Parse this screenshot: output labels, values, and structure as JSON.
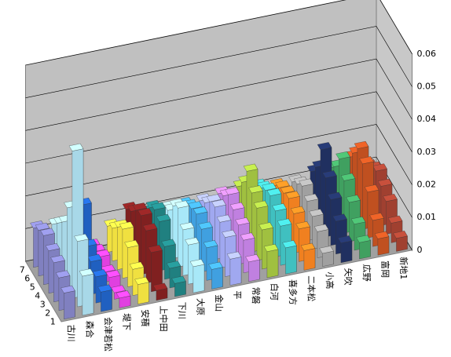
{
  "chart_data": {
    "type": "bar3d",
    "categories": [
      "古川",
      "森合",
      "会津若松",
      "堤下",
      "安積",
      "上中田",
      "下川",
      "大原",
      "金山",
      "平",
      "常磐",
      "白河",
      "喜多方",
      "二本松",
      "小高",
      "矢吹",
      "広野",
      "富岡",
      "新地1"
    ],
    "category_colors": [
      "#8080c0",
      "#a8d8e8",
      "#2060c0",
      "#e040e0",
      "#f0e040",
      "#802020",
      "#208080",
      "#a8e8f8",
      "#40a0e0",
      "#a0a8f0",
      "#c080e0",
      "#a0c040",
      "#40c0c0",
      "#f08020",
      "#a0a0a0",
      "#203060",
      "#40a060",
      "#c05020",
      "#a04030"
    ],
    "series": [
      {
        "name": "1",
        "values": [
          0.008,
          0.012,
          0.006,
          0.003,
          0.006,
          0.003,
          0.004,
          0.008,
          0.006,
          0.008,
          0.006,
          0.008,
          0.008,
          0.006,
          0.004,
          0.006,
          0.005,
          0.005,
          0.004
        ]
      },
      {
        "name": "2",
        "values": [
          0.01,
          0.02,
          0.008,
          0.002,
          0.008,
          0.012,
          0.006,
          0.012,
          0.01,
          0.012,
          0.01,
          0.012,
          0.012,
          0.01,
          0.008,
          0.01,
          0.008,
          0.008,
          0.006
        ]
      },
      {
        "name": "3",
        "values": [
          0.012,
          0.045,
          0.01,
          0.004,
          0.012,
          0.016,
          0.01,
          0.014,
          0.013,
          0.014,
          0.012,
          0.016,
          0.014,
          0.012,
          0.01,
          0.014,
          0.012,
          0.014,
          0.01
        ]
      },
      {
        "name": "4",
        "values": [
          0.013,
          0.025,
          0.012,
          0.003,
          0.015,
          0.018,
          0.015,
          0.018,
          0.015,
          0.016,
          0.014,
          0.018,
          0.016,
          0.014,
          0.012,
          0.018,
          0.016,
          0.02,
          0.012
        ]
      },
      {
        "name": "5",
        "values": [
          0.015,
          0.018,
          0.022,
          0.005,
          0.013,
          0.017,
          0.016,
          0.016,
          0.014,
          0.015,
          0.016,
          0.022,
          0.015,
          0.013,
          0.014,
          0.024,
          0.02,
          0.022,
          0.014
        ]
      },
      {
        "name": "6",
        "values": [
          0.014,
          0.015,
          0.016,
          0.004,
          0.01,
          0.014,
          0.014,
          0.012,
          0.012,
          0.012,
          0.013,
          0.016,
          0.013,
          0.012,
          0.012,
          0.016,
          0.015,
          0.018,
          0.012
        ]
      },
      {
        "name": "7",
        "values": [
          0.012,
          0.012,
          0.014,
          0.003,
          0.008,
          0.012,
          0.01,
          0.01,
          0.01,
          0.01,
          0.011,
          0.012,
          0.011,
          0.01,
          0.01,
          0.012,
          0.012,
          0.014,
          0.01
        ]
      }
    ],
    "ylim": [
      0,
      0.06
    ],
    "yticks": [
      0,
      0.01,
      0.02,
      0.03,
      0.04,
      0.05,
      0.06
    ],
    "grid": true
  }
}
